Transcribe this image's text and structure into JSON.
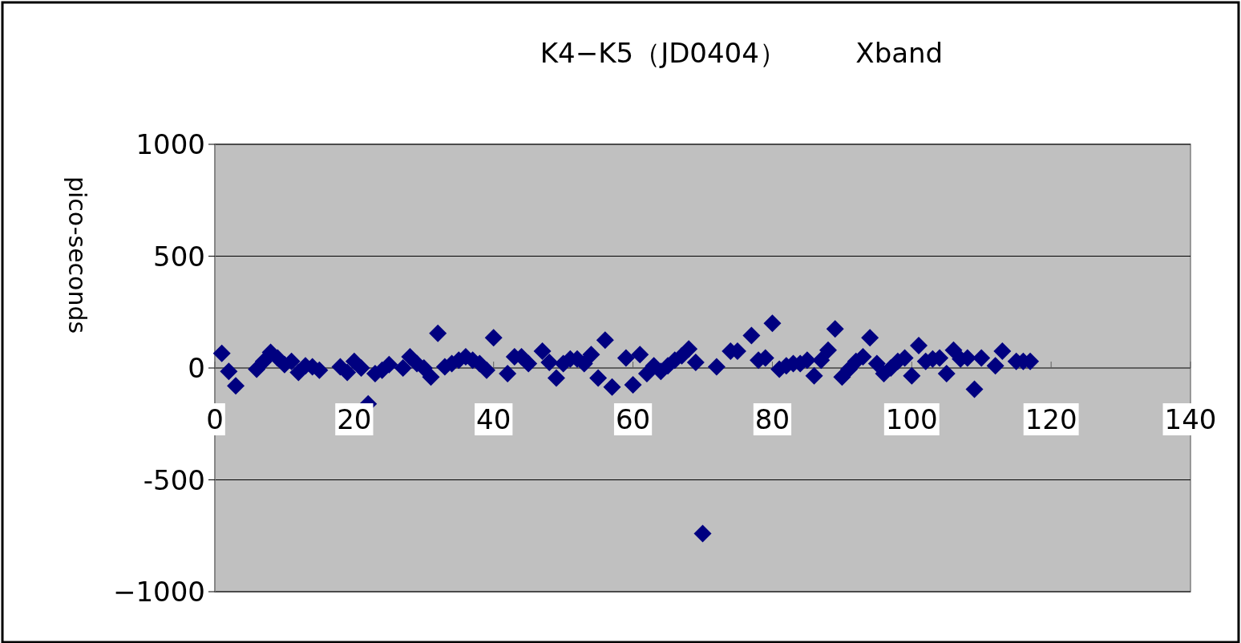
{
  "chart_data": {
    "type": "scatter",
    "title": "K4−K5（JD0404）        Xband",
    "ylabel": "pico-seconds",
    "x": [
      1,
      2,
      3,
      6,
      7,
      8,
      9,
      10,
      11,
      12,
      13,
      14,
      15,
      18,
      19,
      20,
      21,
      22,
      23,
      24,
      25,
      27,
      28,
      29,
      30,
      31,
      32,
      33,
      34,
      35,
      36,
      37,
      38,
      39,
      40,
      42,
      43,
      44,
      45,
      47,
      48,
      49,
      50,
      51,
      52,
      53,
      54,
      55,
      56,
      57,
      59,
      60,
      61,
      62,
      63,
      64,
      65,
      66,
      67,
      68,
      69,
      70,
      72,
      74,
      75,
      77,
      78,
      79,
      80,
      81,
      82,
      83,
      84,
      85,
      86,
      87,
      88,
      89,
      90,
      91,
      92,
      93,
      94,
      95,
      96,
      97,
      98,
      99,
      100,
      101,
      102,
      103,
      104,
      105,
      106,
      107,
      108,
      109,
      110,
      112,
      113,
      115,
      116,
      117
    ],
    "series": [
      {
        "color": "#000080",
        "values": [
          65,
          -15,
          -80,
          -5,
          30,
          70,
          45,
          15,
          30,
          -20,
          10,
          5,
          -10,
          5,
          -20,
          30,
          0,
          -160,
          -25,
          -10,
          15,
          0,
          50,
          20,
          0,
          -40,
          155,
          5,
          20,
          35,
          50,
          35,
          20,
          -10,
          135,
          -25,
          50,
          50,
          20,
          75,
          25,
          -45,
          20,
          40,
          40,
          20,
          60,
          -45,
          125,
          -85,
          45,
          -75,
          60,
          -25,
          10,
          -15,
          10,
          35,
          55,
          85,
          25,
          -740,
          5,
          75,
          75,
          145,
          35,
          45,
          200,
          -5,
          10,
          20,
          20,
          35,
          -35,
          35,
          80,
          175,
          -40,
          -5,
          30,
          50,
          135,
          20,
          -25,
          0,
          30,
          45,
          -35,
          100,
          30,
          40,
          45,
          -25,
          80,
          40,
          45,
          -95,
          45,
          10,
          75,
          30,
          30,
          30
        ]
      }
    ],
    "xlim": [
      0,
      140
    ],
    "xticks": [
      0,
      20,
      40,
      60,
      80,
      100,
      120,
      140
    ],
    "ylim": [
      -1000,
      1000
    ],
    "yticks": [
      1000,
      500,
      0,
      {
        "value": -500,
        "label": "-500"
      },
      {
        "value": -1000,
        "label": "−1000"
      }
    ],
    "grid": "y",
    "marker": "diamond"
  }
}
